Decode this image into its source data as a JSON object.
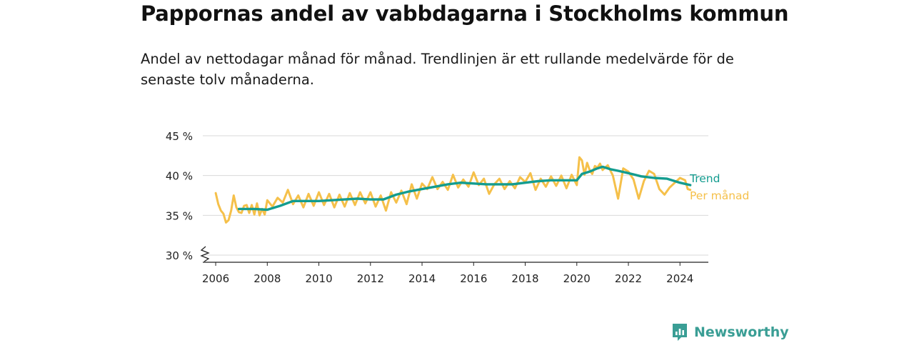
{
  "title": "Pappornas andel av vabbdagarna i Stockholms kommun",
  "subtitle": "Andel av nettodagar månad för månad. Trendlinjen är ett rullande medelvärde för de senaste tolv månaderna.",
  "brand": {
    "name": "Newsworthy",
    "color": "#3a9e95",
    "icon": "newsworthy-logo-icon"
  },
  "chart_data": {
    "type": "line",
    "title": "Pappornas andel av vabbdagarna i Stockholms kommun",
    "xlabel": "",
    "ylabel": "",
    "xlim": [
      2005.5,
      2025.1
    ],
    "ylim": [
      30,
      45
    ],
    "y_axis_break": true,
    "grid": true,
    "x_ticks": [
      2006,
      2008,
      2010,
      2012,
      2014,
      2016,
      2018,
      2020,
      2022,
      2024
    ],
    "x_tick_labels": [
      "2006",
      "2008",
      "2010",
      "2012",
      "2014",
      "2016",
      "2018",
      "2020",
      "2022",
      "2024"
    ],
    "y_ticks": [
      30,
      35,
      40,
      45
    ],
    "y_tick_labels": [
      "30 %",
      "35 %",
      "40 %",
      "45 %"
    ],
    "legend_placement": "direct-labels-right",
    "series": [
      {
        "name": "Per månad",
        "color": "#f5c04a",
        "x": [
          2006.0,
          2006.1,
          2006.2,
          2006.3,
          2006.4,
          2006.5,
          2006.6,
          2006.7,
          2006.8,
          2006.9,
          2007.0,
          2007.1,
          2007.2,
          2007.3,
          2007.4,
          2007.5,
          2007.6,
          2007.7,
          2007.8,
          2007.9,
          2008.0,
          2008.2,
          2008.4,
          2008.6,
          2008.8,
          2009.0,
          2009.2,
          2009.4,
          2009.6,
          2009.8,
          2010.0,
          2010.2,
          2010.4,
          2010.6,
          2010.8,
          2011.0,
          2011.2,
          2011.4,
          2011.6,
          2011.8,
          2012.0,
          2012.2,
          2012.4,
          2012.6,
          2012.8,
          2013.0,
          2013.2,
          2013.4,
          2013.6,
          2013.8,
          2014.0,
          2014.2,
          2014.4,
          2014.6,
          2014.8,
          2015.0,
          2015.2,
          2015.4,
          2015.6,
          2015.8,
          2016.0,
          2016.2,
          2016.4,
          2016.6,
          2016.8,
          2017.0,
          2017.2,
          2017.4,
          2017.6,
          2017.8,
          2018.0,
          2018.2,
          2018.4,
          2018.6,
          2018.8,
          2019.0,
          2019.2,
          2019.4,
          2019.6,
          2019.8,
          2020.0,
          2020.1,
          2020.2,
          2020.3,
          2020.4,
          2020.5,
          2020.6,
          2020.7,
          2020.8,
          2020.9,
          2021.0,
          2021.2,
          2021.4,
          2021.6,
          2021.8,
          2022.0,
          2022.2,
          2022.4,
          2022.6,
          2022.8,
          2023.0,
          2023.2,
          2023.4,
          2023.6,
          2023.8,
          2024.0,
          2024.2,
          2024.3,
          2024.4
        ],
        "values": [
          37.8,
          36.4,
          35.6,
          35.2,
          34.1,
          34.4,
          35.6,
          37.5,
          36.0,
          35.4,
          35.3,
          36.2,
          36.3,
          35.3,
          36.3,
          35.1,
          36.5,
          35.0,
          35.8,
          35.1,
          36.9,
          36.1,
          37.2,
          36.6,
          38.2,
          36.4,
          37.5,
          36.0,
          37.7,
          36.2,
          37.9,
          36.3,
          37.7,
          36.0,
          37.6,
          36.1,
          37.8,
          36.3,
          37.9,
          36.5,
          37.9,
          36.1,
          37.5,
          35.6,
          37.9,
          36.6,
          38.1,
          36.4,
          38.9,
          37.1,
          39.0,
          38.3,
          39.8,
          38.3,
          39.2,
          38.2,
          40.1,
          38.5,
          39.5,
          38.6,
          40.4,
          38.8,
          39.6,
          37.7,
          38.9,
          39.6,
          38.3,
          39.3,
          38.4,
          39.8,
          39.2,
          40.3,
          38.2,
          39.6,
          38.6,
          39.9,
          38.7,
          40.0,
          38.4,
          40.1,
          38.8,
          42.3,
          41.9,
          40.1,
          41.6,
          40.7,
          40.2,
          41.2,
          41.0,
          41.5,
          40.7,
          41.3,
          40.0,
          37.1,
          40.9,
          40.5,
          39.5,
          37.1,
          39.3,
          40.6,
          40.2,
          38.3,
          37.6,
          38.5,
          39.1,
          39.7,
          39.4,
          38.3,
          38.2
        ]
      },
      {
        "name": "Trend",
        "color": "#139c8f",
        "x": [
          2006.9,
          2007.5,
          2008.0,
          2008.5,
          2009.0,
          2009.5,
          2010.0,
          2010.5,
          2011.0,
          2011.5,
          2012.0,
          2012.5,
          2013.0,
          2013.5,
          2014.0,
          2014.5,
          2015.0,
          2015.5,
          2016.0,
          2016.5,
          2017.0,
          2017.5,
          2018.0,
          2018.5,
          2019.0,
          2019.5,
          2020.0,
          2020.2,
          2020.5,
          2020.8,
          2021.0,
          2021.3,
          2021.6,
          2022.0,
          2022.5,
          2023.0,
          2023.5,
          2024.0,
          2024.4
        ],
        "values": [
          35.8,
          35.8,
          35.7,
          36.2,
          36.8,
          36.8,
          36.8,
          36.9,
          37.0,
          37.1,
          37.0,
          37.0,
          37.6,
          38.0,
          38.3,
          38.6,
          38.9,
          39.1,
          39.0,
          38.9,
          38.9,
          38.9,
          39.1,
          39.3,
          39.4,
          39.4,
          39.4,
          40.2,
          40.5,
          40.9,
          41.1,
          40.8,
          40.6,
          40.3,
          39.9,
          39.7,
          39.6,
          39.1,
          38.8
        ]
      }
    ]
  }
}
